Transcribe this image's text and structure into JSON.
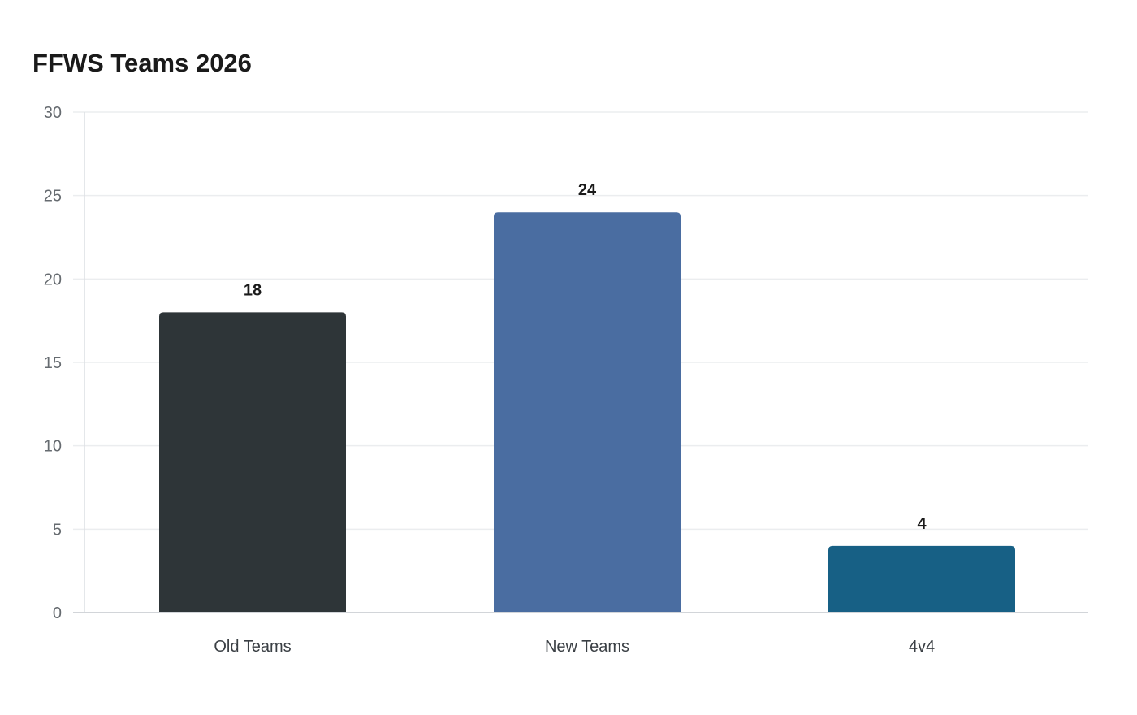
{
  "chart_data": {
    "type": "bar",
    "title": "FFWS Teams 2026",
    "xlabel": "",
    "ylabel": "",
    "categories": [
      "Old Teams",
      "New Teams",
      "4v4"
    ],
    "values": [
      18,
      24,
      4
    ],
    "colors": [
      "#2e3538",
      "#4a6da1",
      "#176085"
    ],
    "ylim": [
      0,
      30
    ],
    "yticks": [
      0,
      5,
      10,
      15,
      20,
      25,
      30
    ],
    "grid": true,
    "legend": null,
    "data_labels": [
      "18",
      "24",
      "4"
    ]
  }
}
